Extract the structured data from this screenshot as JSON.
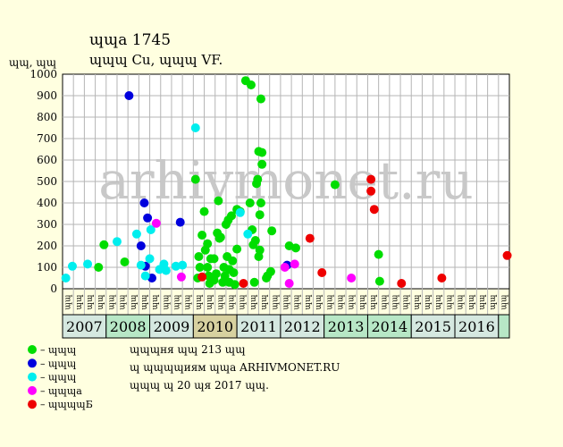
{
  "header": {
    "line1": "ɰɰa 1745",
    "line2": "ɰɰɰ Cu, ɰɰɰ VF."
  },
  "colors": {
    "background": "#ffffe0",
    "plot_bg": "#ffffff",
    "grid": "#b5b5b5",
    "years_row_a": "#b7e7c6",
    "years_row_b": "#d5e8e0",
    "year_2010": "#d7d1a0"
  },
  "chart_data": {
    "type": "scatter",
    "title": "",
    "ylabel": "ɰɰ, ɰɰ",
    "xlabel": "",
    "ylim": [
      0,
      1000
    ],
    "yticks": [
      0,
      100,
      200,
      300,
      400,
      500,
      600,
      700,
      800,
      900,
      1000
    ],
    "grid": true,
    "watermark": "arhivmonet.ru",
    "month_labels": [
      "ɰɰ",
      "ɰɰ",
      "ɰɰ",
      "ɰɰ",
      "ɰɰ",
      "ɰɰ",
      "ɰɰ",
      "ɰɰ",
      "ɰɰ",
      "ɰɰ",
      "ɰɰ",
      "ɰɰ",
      "ɰɰ",
      "ɰɰ",
      "ɰɰ",
      "ɰɰ",
      "ɰɰ",
      "ɰɰ",
      "ɰɰ",
      "ɰɰ",
      "ɰɰ",
      "ɰɰ",
      "ɰɰ",
      "ɰɰ",
      "ɰɰ",
      "ɰɰ",
      "ɰɰ",
      "ɰɰ",
      "ɰɰ",
      "ɰɰ",
      "ɰɰ",
      "ɰɰ",
      "ɰɰ",
      "ɰɰ",
      "ɰɰ",
      "ɰɰ",
      "ɰɰ",
      "ɰɰ",
      "ɰɰ",
      "ɰɰ",
      "ɰɰ"
    ],
    "years": [
      {
        "label": "2007",
        "start": 0,
        "end": 4,
        "color": "#d5e8e0"
      },
      {
        "label": "2008",
        "start": 4,
        "end": 8,
        "color": "#b7e7c6"
      },
      {
        "label": "2009",
        "start": 8,
        "end": 12,
        "color": "#d5e8e0"
      },
      {
        "label": "2010",
        "start": 12,
        "end": 16,
        "color": "#d7d1a0"
      },
      {
        "label": "2011",
        "start": 16,
        "end": 20,
        "color": "#d5e8e0"
      },
      {
        "label": "2012",
        "start": 20,
        "end": 24,
        "color": "#d5e8e0"
      },
      {
        "label": "2013",
        "start": 24,
        "end": 28,
        "color": "#b7e7c6"
      },
      {
        "label": "2014",
        "start": 28,
        "end": 32,
        "color": "#b7e7c6"
      },
      {
        "label": "2015",
        "start": 32,
        "end": 36,
        "color": "#d5e8e0"
      },
      {
        "label": "2016",
        "start": 36,
        "end": 40,
        "color": "#d5e8e0"
      },
      {
        "label": "",
        "start": 40,
        "end": 41,
        "color": "#b7e7c6"
      }
    ],
    "series": [
      {
        "color": "#00dd00",
        "points": [
          [
            3.3,
            100
          ],
          [
            3.8,
            205
          ],
          [
            5.7,
            125
          ],
          [
            12.2,
            510
          ],
          [
            12.4,
            50
          ],
          [
            12.5,
            150
          ],
          [
            12.6,
            100
          ],
          [
            12.8,
            250
          ],
          [
            13.0,
            360
          ],
          [
            13.1,
            180
          ],
          [
            13.3,
            210
          ],
          [
            13.3,
            100
          ],
          [
            13.4,
            60
          ],
          [
            13.5,
            25
          ],
          [
            13.6,
            140
          ],
          [
            13.9,
            140
          ],
          [
            13.9,
            40
          ],
          [
            14.1,
            70
          ],
          [
            14.2,
            260
          ],
          [
            14.3,
            410
          ],
          [
            14.4,
            235
          ],
          [
            14.5,
            240
          ],
          [
            14.7,
            30
          ],
          [
            14.8,
            100
          ],
          [
            14.9,
            60
          ],
          [
            15.0,
            300
          ],
          [
            15.1,
            150
          ],
          [
            15.2,
            320
          ],
          [
            15.3,
            90
          ],
          [
            15.3,
            30
          ],
          [
            15.5,
            340
          ],
          [
            15.6,
            130
          ],
          [
            15.7,
            75
          ],
          [
            15.8,
            20
          ],
          [
            16.0,
            185
          ],
          [
            16.0,
            370
          ],
          [
            16.3,
            360
          ],
          [
            16.8,
            970
          ],
          [
            17.2,
            400
          ],
          [
            17.3,
            950
          ],
          [
            17.4,
            275
          ],
          [
            17.5,
            205
          ],
          [
            17.6,
            30
          ],
          [
            17.7,
            225
          ],
          [
            17.8,
            490
          ],
          [
            17.9,
            510
          ],
          [
            18.0,
            640
          ],
          [
            18.0,
            150
          ],
          [
            18.1,
            180
          ],
          [
            18.1,
            345
          ],
          [
            18.2,
            885
          ],
          [
            18.2,
            400
          ],
          [
            18.3,
            635
          ],
          [
            18.3,
            580
          ],
          [
            18.7,
            50
          ],
          [
            18.8,
            60
          ],
          [
            19.1,
            80
          ],
          [
            19.2,
            270
          ],
          [
            20.8,
            200
          ],
          [
            21.4,
            190
          ],
          [
            25.0,
            485
          ],
          [
            29.0,
            160
          ],
          [
            29.1,
            35
          ]
        ]
      },
      {
        "color": "#0000dd",
        "points": [
          [
            6.1,
            900
          ],
          [
            7.2,
            200
          ],
          [
            7.5,
            400
          ],
          [
            7.6,
            105
          ],
          [
            7.8,
            330
          ],
          [
            8.2,
            50
          ],
          [
            10.8,
            310
          ],
          [
            20.6,
            110
          ]
        ]
      },
      {
        "color": "#00eeee",
        "points": [
          [
            0.3,
            50
          ],
          [
            0.9,
            105
          ],
          [
            2.3,
            115
          ],
          [
            5.0,
            220
          ],
          [
            6.8,
            255
          ],
          [
            7.2,
            110
          ],
          [
            7.6,
            60
          ],
          [
            8.0,
            140
          ],
          [
            8.1,
            275
          ],
          [
            8.9,
            90
          ],
          [
            9.3,
            115
          ],
          [
            9.5,
            85
          ],
          [
            10.4,
            105
          ],
          [
            11.0,
            110
          ],
          [
            12.2,
            750
          ],
          [
            17.0,
            255
          ],
          [
            16.3,
            355
          ]
        ]
      },
      {
        "color": "#ff00ff",
        "points": [
          [
            8.6,
            305
          ],
          [
            10.9,
            55
          ],
          [
            20.4,
            100
          ],
          [
            20.8,
            25
          ],
          [
            21.3,
            115
          ],
          [
            26.5,
            50
          ]
        ]
      },
      {
        "color": "#ee0000",
        "points": [
          [
            12.8,
            55
          ],
          [
            16.6,
            25
          ],
          [
            22.7,
            235
          ],
          [
            23.8,
            75
          ],
          [
            28.3,
            510
          ],
          [
            28.3,
            455
          ],
          [
            28.6,
            370
          ],
          [
            31.1,
            25
          ],
          [
            34.8,
            50
          ],
          [
            40.8,
            155
          ]
        ]
      }
    ]
  },
  "legend": [
    {
      "color": "#00dd00",
      "label": "– ɰɰɰ"
    },
    {
      "color": "#0000dd",
      "label": "– ɰɰɰ"
    },
    {
      "color": "#00eeee",
      "label": "– ɰɰɰ"
    },
    {
      "color": "#ff00ff",
      "label": "– ɰɰɰa"
    },
    {
      "color": "#ee0000",
      "label": "– ɰɰɰɰБ"
    }
  ],
  "info": {
    "line1": "ɰɰɰня ɰɰ 213 ɰɰ",
    "line2": "ɰ ɰɰɰɰиям ɰɰa ARHIVMONET.RU",
    "line3": "ɰɰɰ ɰ 20 ɰя 2017 ɰɰ."
  }
}
